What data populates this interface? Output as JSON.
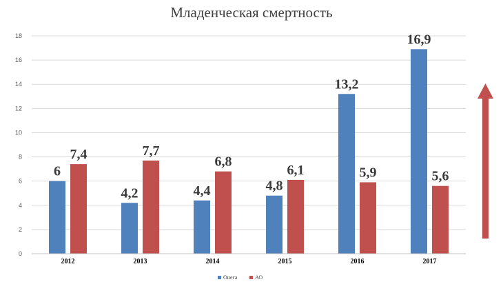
{
  "chart_data": {
    "type": "bar",
    "title": "Младенческая смертность",
    "xlabel": "",
    "ylabel": "",
    "categories": [
      "2012",
      "2013",
      "2014",
      "2015",
      "2016",
      "2017"
    ],
    "series": [
      {
        "name": "Онега",
        "values": [
          6,
          4.2,
          4.4,
          4.8,
          13.2,
          16.9
        ],
        "labels": [
          "6",
          "4,2",
          "4,4",
          "4,8",
          "13,2",
          "16,9"
        ],
        "color": "#4f81bd"
      },
      {
        "name": "АО",
        "values": [
          7.4,
          7.7,
          6.8,
          6.1,
          5.9,
          5.6
        ],
        "labels": [
          "7,4",
          "7,7",
          "6,8",
          "6,1",
          "5,9",
          "5,6"
        ],
        "color": "#c0504d"
      }
    ],
    "ylim": [
      0,
      18
    ],
    "yticks": [
      0,
      2,
      4,
      6,
      8,
      10,
      12,
      14,
      16,
      18
    ],
    "grid": true,
    "legend_position": "bottom",
    "annotation": {
      "type": "arrow-up",
      "color": "#c0504d"
    }
  }
}
